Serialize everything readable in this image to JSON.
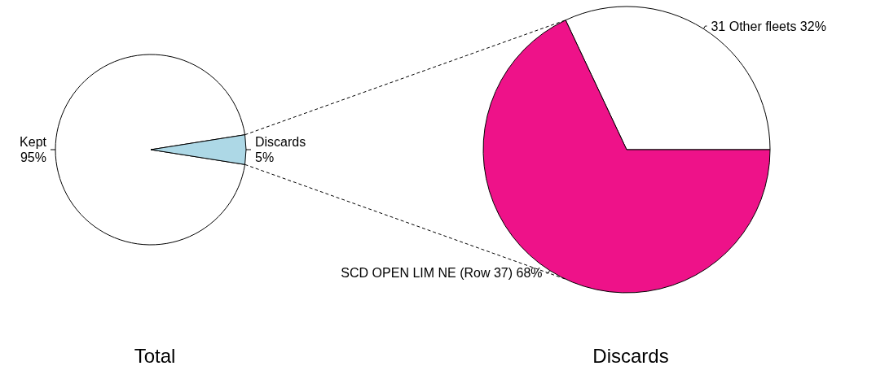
{
  "chart_data": [
    {
      "type": "pie",
      "title": "Total",
      "categories": [
        "Kept",
        "Discards"
      ],
      "values": [
        95,
        5
      ],
      "value_labels": [
        "95%",
        "5%"
      ],
      "colors": [
        "#ffffff",
        "#add8e6"
      ]
    },
    {
      "type": "pie",
      "title": "Discards",
      "categories": [
        "31 Other fleets",
        "SCD OPEN LIM NE (Row 37)"
      ],
      "values": [
        32,
        68
      ],
      "value_labels": [
        "32%",
        "68%"
      ],
      "colors": [
        "#ffffff",
        "#ee1289"
      ]
    }
  ]
}
